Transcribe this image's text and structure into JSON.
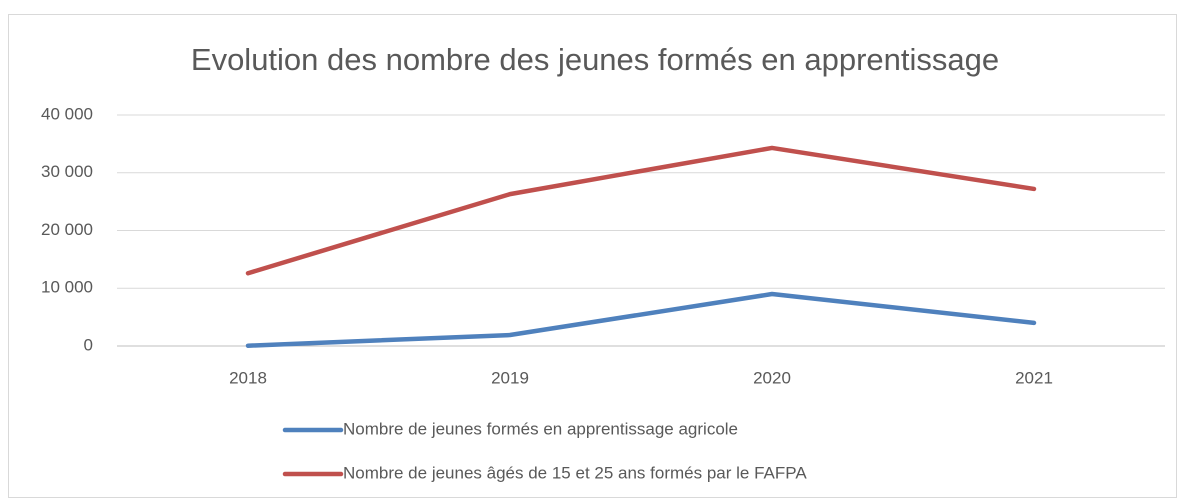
{
  "chart_data": {
    "type": "line",
    "title": "Evolution des nombre des jeunes formés en apprentissage",
    "categories": [
      "2018",
      "2019",
      "2020",
      "2021"
    ],
    "series": [
      {
        "name": "Nombre de jeunes formés en apprentissage agricole",
        "color": "#4f81bd",
        "values": [
          50,
          1900,
          9000,
          4000
        ]
      },
      {
        "name": "Nombre de jeunes âgés de 15 et 25 ans formés par le FAFPA",
        "color": "#c0504d",
        "values": [
          12600,
          26300,
          34300,
          27200
        ]
      }
    ],
    "ylim": [
      0,
      40000
    ],
    "yticks": [
      0,
      {
        "value": 10000,
        "label": "10 000"
      },
      {
        "value": 20000,
        "label": "20 000"
      },
      {
        "value": 30000,
        "label": "30 000"
      },
      {
        "value": 40000,
        "label": "40 000"
      }
    ],
    "grid": true,
    "legend": "bottom"
  }
}
